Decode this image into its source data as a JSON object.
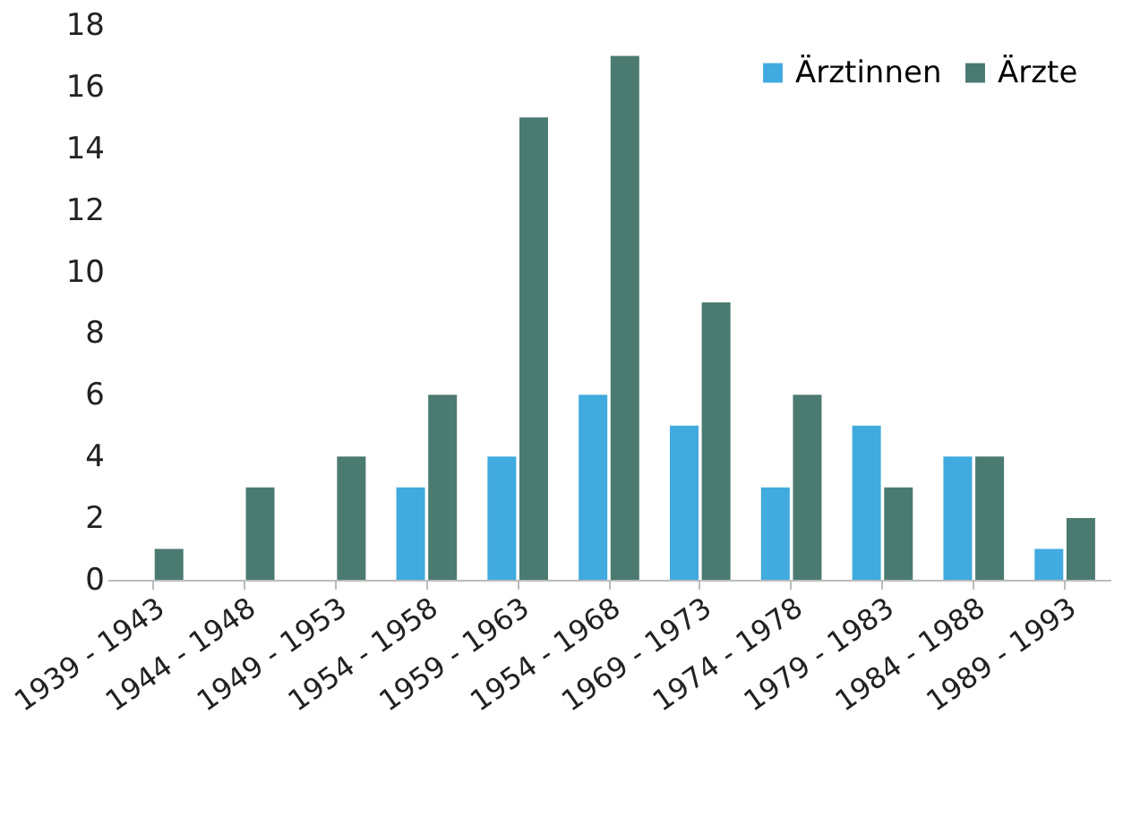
{
  "chart_data": {
    "type": "bar",
    "categories": [
      "1939 - 1943",
      "1944 - 1948",
      "1949 - 1953",
      "1954 - 1958",
      "1959 - 1963",
      "1954 - 1968",
      "1969 - 1973",
      "1974 - 1978",
      "1979 - 1983",
      "1984 - 1988",
      "1989 - 1993"
    ],
    "series": [
      {
        "name": "Ärztinnen",
        "color": "#41aadf",
        "values": [
          0,
          0,
          0,
          3,
          4,
          6,
          5,
          3,
          5,
          4,
          1
        ]
      },
      {
        "name": "Ärzte",
        "color": "#4b7a70",
        "values": [
          1,
          3,
          4,
          6,
          15,
          17,
          9,
          6,
          3,
          4,
          2
        ]
      }
    ],
    "ylim": [
      0,
      18
    ],
    "yticks": [
      0,
      2,
      4,
      6,
      8,
      10,
      12,
      14,
      16,
      18
    ],
    "grid": false,
    "legend": "top right"
  }
}
